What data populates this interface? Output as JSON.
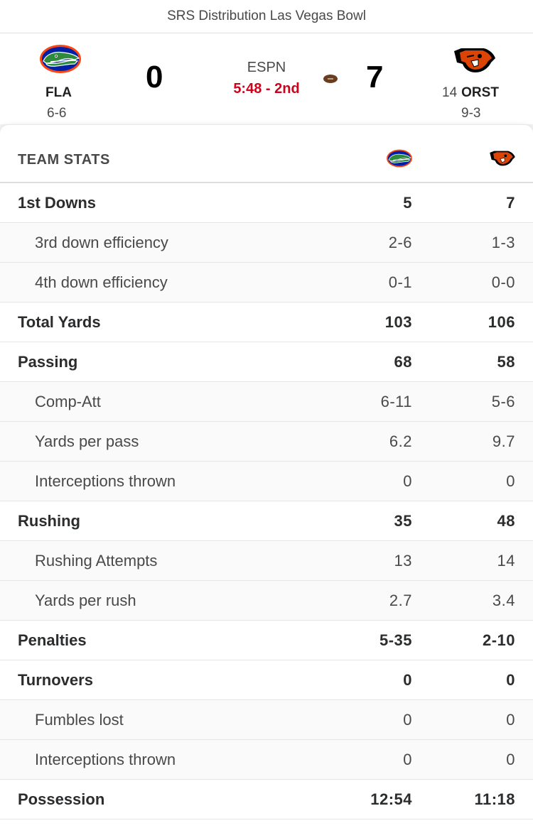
{
  "game": {
    "title": "SRS Distribution Las Vegas Bowl",
    "network": "ESPN",
    "clock": "5:48 - 2nd"
  },
  "away": {
    "abbr": "FLA",
    "record": "6-6",
    "score": "0",
    "logo_icon": "florida-gators-logo-icon",
    "colors": {
      "primary": "#0021a5",
      "accent": "#fa4616",
      "gator": "#2e8b3e"
    }
  },
  "home": {
    "rank": "14",
    "abbr": "ORST",
    "record": "9-3",
    "score": "7",
    "logo_icon": "oregon-state-beavers-logo-icon",
    "colors": {
      "primary": "#dc4405",
      "secondary": "#000000"
    }
  },
  "possession_icon": "football-icon",
  "stats": {
    "header": "TEAM STATS",
    "rows": [
      {
        "label": "1st Downs",
        "away": "5",
        "home": "7",
        "level": "main"
      },
      {
        "label": "3rd down efficiency",
        "away": "2-6",
        "home": "1-3",
        "level": "sub"
      },
      {
        "label": "4th down efficiency",
        "away": "0-1",
        "home": "0-0",
        "level": "sub"
      },
      {
        "label": "Total Yards",
        "away": "103",
        "home": "106",
        "level": "main"
      },
      {
        "label": "Passing",
        "away": "68",
        "home": "58",
        "level": "main"
      },
      {
        "label": "Comp-Att",
        "away": "6-11",
        "home": "5-6",
        "level": "sub"
      },
      {
        "label": "Yards per pass",
        "away": "6.2",
        "home": "9.7",
        "level": "sub"
      },
      {
        "label": "Interceptions thrown",
        "away": "0",
        "home": "0",
        "level": "sub"
      },
      {
        "label": "Rushing",
        "away": "35",
        "home": "48",
        "level": "main"
      },
      {
        "label": "Rushing Attempts",
        "away": "13",
        "home": "14",
        "level": "sub"
      },
      {
        "label": "Yards per rush",
        "away": "2.7",
        "home": "3.4",
        "level": "sub"
      },
      {
        "label": "Penalties",
        "away": "5-35",
        "home": "2-10",
        "level": "main"
      },
      {
        "label": "Turnovers",
        "away": "0",
        "home": "0",
        "level": "main"
      },
      {
        "label": "Fumbles lost",
        "away": "0",
        "home": "0",
        "level": "sub"
      },
      {
        "label": "Interceptions thrown",
        "away": "0",
        "home": "0",
        "level": "sub"
      },
      {
        "label": "Possession",
        "away": "12:54",
        "home": "11:18",
        "level": "main"
      }
    ]
  }
}
